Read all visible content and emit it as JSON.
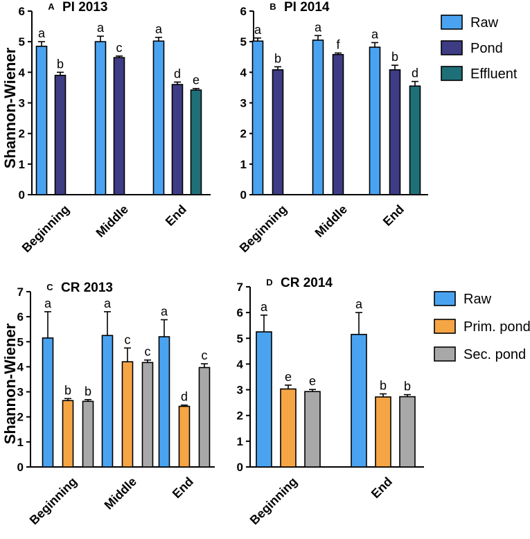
{
  "colors": {
    "Raw": "#4aa3f0",
    "Pond": "#3e3c84",
    "Effluent": "#1f6f78",
    "Prim. pond": "#f6a545",
    "Sec. pond": "#a8a8a8"
  },
  "legends": [
    {
      "entries": [
        "Raw",
        "Pond",
        "Effluent"
      ]
    },
    {
      "entries": [
        "Raw",
        "Prim. pond",
        "Sec. pond"
      ]
    }
  ],
  "chart_data": [
    {
      "type": "bar",
      "letter": "A",
      "title": "PI 2013",
      "ylabel": "Shannon-Wiener",
      "ylim": [
        0,
        6
      ],
      "yticks": [
        "0",
        "1",
        "2",
        "3",
        "4",
        "5",
        "6"
      ],
      "categories": [
        "Beginning",
        "Middle",
        "End"
      ],
      "series": [
        {
          "name": "Raw",
          "values": [
            4.85,
            5.0,
            5.02
          ],
          "errors": [
            0.15,
            0.18,
            0.12
          ],
          "labels": [
            "a",
            "a",
            "a"
          ]
        },
        {
          "name": "Pond",
          "values": [
            3.9,
            4.48,
            3.6
          ],
          "errors": [
            0.1,
            0.05,
            0.08
          ],
          "labels": [
            "b",
            "c",
            "d"
          ]
        },
        {
          "name": "Effluent",
          "values": [
            null,
            null,
            3.42
          ],
          "errors": [
            null,
            null,
            0.05
          ],
          "labels": [
            null,
            null,
            "e"
          ]
        }
      ]
    },
    {
      "type": "bar",
      "letter": "B",
      "title": "PI 2014",
      "ylabel": "",
      "ylim": [
        0,
        6
      ],
      "yticks": [
        "0",
        "1",
        "2",
        "3",
        "4",
        "5",
        "6"
      ],
      "categories": [
        "Beginning",
        "Middle",
        "End"
      ],
      "series": [
        {
          "name": "Raw",
          "values": [
            5.02,
            5.05,
            4.82
          ],
          "errors": [
            0.1,
            0.15,
            0.15
          ],
          "labels": [
            "a",
            "a",
            "a"
          ]
        },
        {
          "name": "Pond",
          "values": [
            4.08,
            4.58,
            4.08
          ],
          "errors": [
            0.1,
            0.05,
            0.15
          ],
          "labels": [
            "b",
            "f",
            "b"
          ]
        },
        {
          "name": "Effluent",
          "values": [
            null,
            null,
            3.55
          ],
          "errors": [
            null,
            null,
            0.15
          ],
          "labels": [
            null,
            null,
            "d"
          ]
        }
      ]
    },
    {
      "type": "bar",
      "letter": "C",
      "title": "CR 2013",
      "ylabel": "Shannon-Wiener",
      "ylim": [
        0,
        7
      ],
      "yticks": [
        "0",
        "1",
        "2",
        "3",
        "4",
        "5",
        "6",
        "7"
      ],
      "categories": [
        "Beginning",
        "Middle",
        "End"
      ],
      "series": [
        {
          "name": "Raw",
          "values": [
            5.15,
            5.25,
            5.2
          ],
          "errors": [
            1.05,
            0.95,
            0.68
          ],
          "labels": [
            "a",
            "a",
            "a"
          ]
        },
        {
          "name": "Prim. pond",
          "values": [
            2.65,
            4.2,
            2.42
          ],
          "errors": [
            0.08,
            0.55,
            0.05
          ],
          "labels": [
            "b",
            "c",
            "d"
          ]
        },
        {
          "name": "Sec. pond",
          "values": [
            2.62,
            4.17,
            3.97
          ],
          "errors": [
            0.07,
            0.1,
            0.15
          ],
          "labels": [
            "b",
            "c",
            "c"
          ]
        }
      ]
    },
    {
      "type": "bar",
      "letter": "D",
      "title": "CR 2014",
      "ylabel": "",
      "ylim": [
        0,
        7
      ],
      "yticks": [
        "0",
        "1",
        "2",
        "3",
        "4",
        "5",
        "6",
        "7"
      ],
      "categories": [
        "Beginning",
        "End"
      ],
      "series": [
        {
          "name": "Raw",
          "values": [
            5.25,
            5.15
          ],
          "errors": [
            0.65,
            0.85
          ],
          "labels": [
            "a",
            "a"
          ]
        },
        {
          "name": "Prim. pond",
          "values": [
            3.03,
            2.72
          ],
          "errors": [
            0.15,
            0.12
          ],
          "labels": [
            "e",
            "b"
          ]
        },
        {
          "name": "Sec. pond",
          "values": [
            2.93,
            2.73
          ],
          "errors": [
            0.08,
            0.08
          ],
          "labels": [
            "e",
            "b"
          ]
        }
      ]
    }
  ]
}
